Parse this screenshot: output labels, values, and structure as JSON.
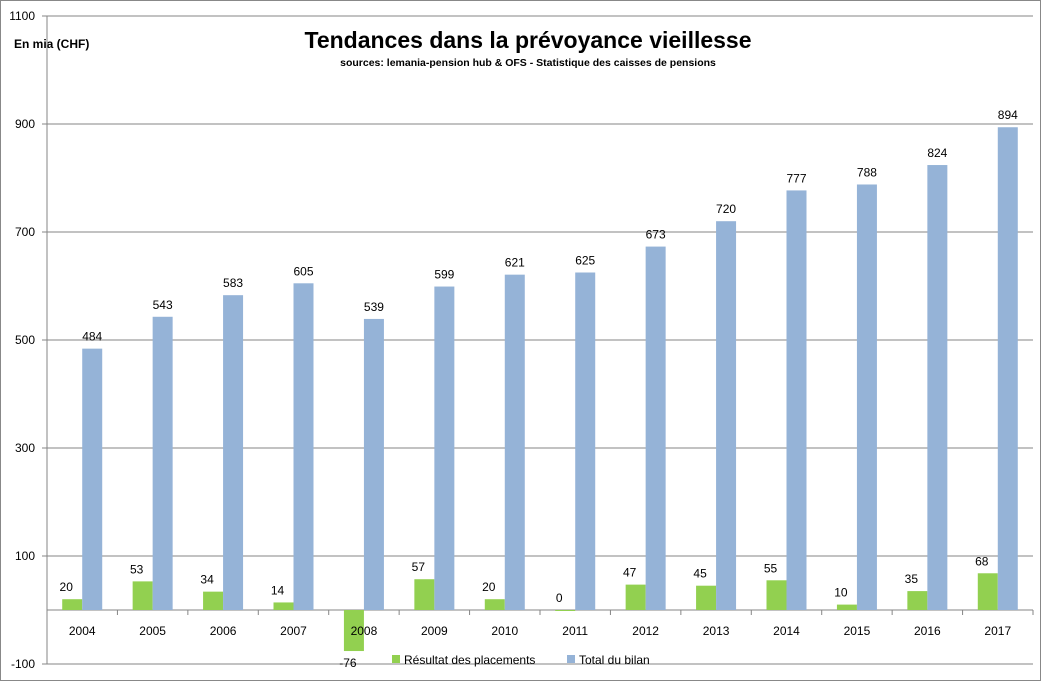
{
  "chart_data": {
    "type": "bar",
    "title": "Tendances dans la prévoyance vieillesse",
    "subtitle": "sources: lemania-pension hub & OFS - Statistique des caisses de pensions",
    "ylabel": "En mia (CHF)",
    "xlabel": "",
    "ylim": [
      -100,
      1100
    ],
    "yticks": [
      -100,
      100,
      300,
      500,
      700,
      900,
      1100
    ],
    "grid": true,
    "legend": "bottom",
    "categories": [
      "2004",
      "2005",
      "2006",
      "2007",
      "2008",
      "2009",
      "2010",
      "2011",
      "2012",
      "2013",
      "2014",
      "2015",
      "2016",
      "2017"
    ],
    "series": [
      {
        "name": "Résultat des placements",
        "color": "#92D050",
        "values": [
          20,
          53,
          34,
          14,
          -76,
          57,
          20,
          0,
          47,
          45,
          55,
          10,
          35,
          68
        ]
      },
      {
        "name": "Total du bilan",
        "color": "#95B3D7",
        "values": [
          484,
          543,
          583,
          605,
          539,
          599,
          621,
          625,
          673,
          720,
          777,
          788,
          824,
          894
        ]
      }
    ]
  }
}
